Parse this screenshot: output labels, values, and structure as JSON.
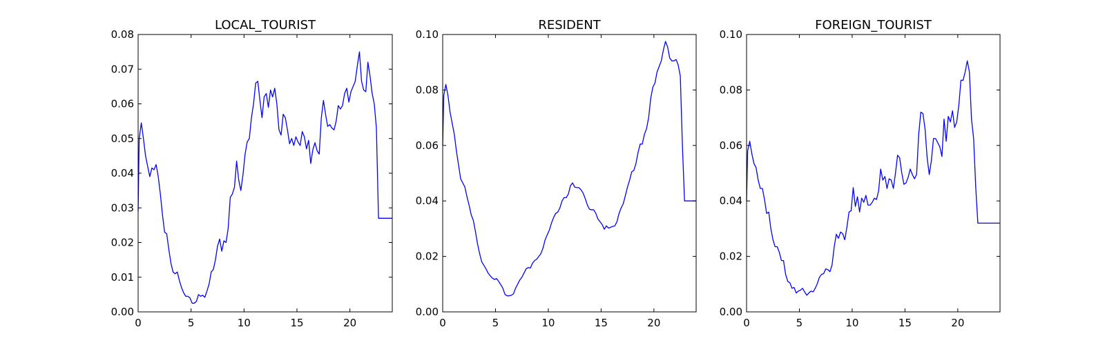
{
  "chart_data": [
    {
      "type": "line",
      "title": "LOCAL_TOURIST",
      "xlabel": "",
      "ylabel": "",
      "xlim": [
        0,
        24
      ],
      "ylim": [
        0,
        0.08
      ],
      "xticks": [
        0,
        5,
        10,
        15,
        20
      ],
      "yticks": [
        0.0,
        0.01,
        0.02,
        0.03,
        0.04,
        0.05,
        0.06,
        0.07,
        0.08
      ],
      "xtick_labels": [
        "0",
        "5",
        "10",
        "15",
        "20"
      ],
      "ytick_labels": [
        "0.00",
        "0.01",
        "0.02",
        "0.03",
        "0.04",
        "0.05",
        "0.06",
        "0.07",
        "0.08"
      ],
      "grid": false,
      "color": "#0000ff",
      "series": [
        {
          "x": [
            0,
            0.1,
            0.3,
            0.5,
            0.7,
            0.9,
            1.1,
            1.3,
            1.5,
            1.7,
            1.9,
            2.1,
            2.3,
            2.5,
            2.7,
            2.9,
            3.1,
            3.3,
            3.5,
            3.7,
            3.9,
            4.1,
            4.3,
            4.5,
            4.7,
            4.9,
            5.1,
            5.3,
            5.5,
            5.7,
            5.9,
            6.1,
            6.3,
            6.5,
            6.7,
            6.9,
            7.1,
            7.3,
            7.5,
            7.7,
            7.9,
            8.1,
            8.3,
            8.5,
            8.7,
            8.9,
            9.1,
            9.3,
            9.5,
            9.7,
            9.9,
            10.1,
            10.3,
            10.5,
            10.7,
            10.9,
            11.1,
            11.3,
            11.5,
            11.7,
            11.9,
            12.1,
            12.3,
            12.5,
            12.7,
            12.9,
            13.1,
            13.3,
            13.5,
            13.7,
            13.9,
            14.1,
            14.3,
            14.5,
            14.7,
            14.9,
            15.1,
            15.3,
            15.5,
            15.7,
            15.9,
            16.1,
            16.3,
            16.5,
            16.7,
            16.9,
            17.1,
            17.3,
            17.5,
            17.7,
            17.9,
            18.1,
            18.3,
            18.5,
            18.7,
            18.9,
            19.1,
            19.3,
            19.5,
            19.7,
            19.9,
            20.1,
            20.3,
            20.5,
            20.7,
            20.9,
            21.1,
            21.3,
            21.5,
            21.7,
            21.9,
            22.1,
            22.3,
            22.5,
            22.7,
            22.9,
            23.1,
            23.3,
            23.5,
            23.7,
            23.9,
            24
          ],
          "y": [
            0.029,
            0.05,
            0.0545,
            0.05,
            0.045,
            0.042,
            0.039,
            0.0415,
            0.041,
            0.0425,
            0.039,
            0.034,
            0.028,
            0.023,
            0.0225,
            0.018,
            0.014,
            0.0115,
            0.011,
            0.0115,
            0.009,
            0.007,
            0.0055,
            0.0045,
            0.0045,
            0.004,
            0.0025,
            0.0025,
            0.003,
            0.005,
            0.0045,
            0.0048,
            0.0042,
            0.006,
            0.008,
            0.0115,
            0.0122,
            0.015,
            0.019,
            0.021,
            0.0175,
            0.0205,
            0.02,
            0.024,
            0.033,
            0.034,
            0.036,
            0.0435,
            0.038,
            0.035,
            0.0395,
            0.0455,
            0.049,
            0.05,
            0.056,
            0.06,
            0.066,
            0.0665,
            0.061,
            0.056,
            0.062,
            0.063,
            0.059,
            0.064,
            0.062,
            0.0645,
            0.06,
            0.0525,
            0.051,
            0.057,
            0.056,
            0.0525,
            0.0485,
            0.05,
            0.048,
            0.0505,
            0.049,
            0.048,
            0.052,
            0.0505,
            0.047,
            0.0495,
            0.0428,
            0.0468,
            0.0488,
            0.0465,
            0.0455,
            0.056,
            0.061,
            0.057,
            0.0535,
            0.054,
            0.053,
            0.0525,
            0.055,
            0.0595,
            0.0585,
            0.0595,
            0.063,
            0.0645,
            0.0605,
            0.0635,
            0.065,
            0.0665,
            0.071,
            0.075,
            0.0665,
            0.064,
            0.0635,
            0.072,
            0.068,
            0.063,
            0.06,
            0.053,
            0.027,
            0.027,
            0.027,
            0.027,
            0.027,
            0.027,
            0.027,
            0.027
          ]
        }
      ]
    },
    {
      "type": "line",
      "title": "RESIDENT",
      "xlabel": "",
      "ylabel": "",
      "xlim": [
        0,
        24
      ],
      "ylim": [
        0,
        0.1
      ],
      "xticks": [
        0,
        5,
        10,
        15,
        20
      ],
      "yticks": [
        0.0,
        0.02,
        0.04,
        0.06,
        0.08,
        0.1
      ],
      "xtick_labels": [
        "0",
        "5",
        "10",
        "15",
        "20"
      ],
      "ytick_labels": [
        "0.00",
        "0.02",
        "0.04",
        "0.06",
        "0.08",
        "0.10"
      ],
      "grid": false,
      "color": "#0000ff",
      "series": [
        {
          "x": [
            0,
            0.1,
            0.3,
            0.5,
            0.7,
            0.9,
            1.1,
            1.3,
            1.5,
            1.7,
            1.9,
            2.1,
            2.3,
            2.5,
            2.7,
            2.9,
            3.1,
            3.3,
            3.5,
            3.7,
            3.9,
            4.1,
            4.3,
            4.5,
            4.7,
            4.9,
            5.1,
            5.3,
            5.5,
            5.7,
            5.9,
            6.1,
            6.3,
            6.5,
            6.7,
            6.9,
            7.1,
            7.3,
            7.5,
            7.7,
            7.9,
            8.1,
            8.3,
            8.5,
            8.7,
            8.9,
            9.1,
            9.3,
            9.5,
            9.7,
            9.9,
            10.1,
            10.3,
            10.5,
            10.7,
            10.9,
            11.1,
            11.3,
            11.5,
            11.7,
            11.9,
            12.1,
            12.3,
            12.5,
            12.7,
            12.9,
            13.1,
            13.3,
            13.5,
            13.7,
            13.9,
            14.1,
            14.3,
            14.5,
            14.7,
            14.9,
            15.1,
            15.3,
            15.5,
            15.7,
            15.9,
            16.1,
            16.3,
            16.5,
            16.7,
            16.9,
            17.1,
            17.3,
            17.5,
            17.7,
            17.9,
            18.1,
            18.3,
            18.5,
            18.7,
            18.9,
            19.1,
            19.3,
            19.5,
            19.7,
            19.9,
            20.1,
            20.3,
            20.5,
            20.7,
            20.9,
            21.1,
            21.3,
            21.5,
            21.7,
            21.9,
            22.1,
            22.3,
            22.5,
            22.7,
            22.9,
            23.1,
            23.3,
            23.5,
            23.7,
            23.9,
            24
          ],
          "y": [
            0.06,
            0.078,
            0.082,
            0.078,
            0.072,
            0.068,
            0.064,
            0.058,
            0.053,
            0.048,
            0.0465,
            0.045,
            0.0415,
            0.0385,
            0.035,
            0.033,
            0.029,
            0.0245,
            0.021,
            0.018,
            0.0168,
            0.0155,
            0.014,
            0.013,
            0.0122,
            0.0117,
            0.012,
            0.011,
            0.0098,
            0.0085,
            0.0063,
            0.0058,
            0.0058,
            0.006,
            0.0065,
            0.0085,
            0.01,
            0.0115,
            0.0125,
            0.014,
            0.0155,
            0.016,
            0.0158,
            0.0175,
            0.0185,
            0.019,
            0.02,
            0.021,
            0.023,
            0.026,
            0.0278,
            0.0295,
            0.032,
            0.034,
            0.0355,
            0.036,
            0.0375,
            0.04,
            0.0412,
            0.0412,
            0.0425,
            0.0455,
            0.0465,
            0.045,
            0.0448,
            0.0448,
            0.044,
            0.0428,
            0.0408,
            0.0385,
            0.037,
            0.0368,
            0.0368,
            0.0355,
            0.0335,
            0.0325,
            0.0315,
            0.0298,
            0.031,
            0.0302,
            0.0305,
            0.0308,
            0.031,
            0.0325,
            0.0355,
            0.0375,
            0.039,
            0.042,
            0.045,
            0.0475,
            0.0505,
            0.051,
            0.0535,
            0.0575,
            0.0605,
            0.0605,
            0.064,
            0.066,
            0.07,
            0.077,
            0.081,
            0.0825,
            0.0865,
            0.0885,
            0.0905,
            0.0945,
            0.0975,
            0.0955,
            0.0915,
            0.0905,
            0.0905,
            0.091,
            0.089,
            0.085,
            0.06,
            0.04,
            0.04,
            0.04,
            0.04,
            0.04,
            0.04,
            0.04
          ]
        }
      ]
    },
    {
      "type": "line",
      "title": "FOREIGN_TOURIST",
      "xlabel": "",
      "ylabel": "",
      "xlim": [
        0,
        24
      ],
      "ylim": [
        0,
        0.1
      ],
      "xticks": [
        0,
        5,
        10,
        15,
        20
      ],
      "yticks": [
        0.0,
        0.02,
        0.04,
        0.06,
        0.08,
        0.1
      ],
      "xtick_labels": [
        "0",
        "5",
        "10",
        "15",
        "20"
      ],
      "ytick_labels": [
        "0.00",
        "0.02",
        "0.04",
        "0.06",
        "0.08",
        "0.10"
      ],
      "grid": false,
      "color": "#0000ff",
      "series": [
        {
          "x": [
            0,
            0.1,
            0.3,
            0.5,
            0.7,
            0.9,
            1.1,
            1.3,
            1.5,
            1.7,
            1.9,
            2.1,
            2.3,
            2.5,
            2.7,
            2.9,
            3.1,
            3.3,
            3.5,
            3.7,
            3.9,
            4.1,
            4.3,
            4.5,
            4.7,
            4.9,
            5.1,
            5.3,
            5.5,
            5.7,
            5.9,
            6.1,
            6.3,
            6.5,
            6.7,
            6.9,
            7.1,
            7.3,
            7.5,
            7.7,
            7.9,
            8.1,
            8.3,
            8.5,
            8.7,
            8.9,
            9.1,
            9.3,
            9.5,
            9.7,
            9.9,
            10.1,
            10.3,
            10.5,
            10.7,
            10.9,
            11.1,
            11.3,
            11.5,
            11.7,
            11.9,
            12.1,
            12.3,
            12.5,
            12.7,
            12.9,
            13.1,
            13.3,
            13.5,
            13.7,
            13.9,
            14.1,
            14.3,
            14.5,
            14.7,
            14.9,
            15.1,
            15.3,
            15.5,
            15.7,
            15.9,
            16.1,
            16.3,
            16.5,
            16.7,
            16.9,
            17.1,
            17.3,
            17.5,
            17.7,
            17.9,
            18.1,
            18.3,
            18.5,
            18.7,
            18.9,
            19.1,
            19.3,
            19.5,
            19.7,
            19.9,
            20.1,
            20.3,
            20.5,
            20.7,
            20.9,
            21.1,
            21.3,
            21.5,
            21.7,
            21.9,
            22.1,
            22.3,
            22.5,
            22.7,
            22.9,
            23.1,
            23.3,
            23.5,
            23.7,
            23.9,
            24
          ],
          "y": [
            0.04,
            0.058,
            0.0615,
            0.057,
            0.0535,
            0.052,
            0.0475,
            0.0445,
            0.0445,
            0.0405,
            0.0355,
            0.036,
            0.03,
            0.026,
            0.0235,
            0.0235,
            0.0215,
            0.0185,
            0.0185,
            0.0135,
            0.011,
            0.0105,
            0.0085,
            0.0088,
            0.0068,
            0.0075,
            0.0078,
            0.0085,
            0.0072,
            0.006,
            0.0068,
            0.0075,
            0.0072,
            0.0085,
            0.0102,
            0.0125,
            0.0135,
            0.0138,
            0.0155,
            0.0152,
            0.0145,
            0.017,
            0.0235,
            0.028,
            0.0265,
            0.0288,
            0.0282,
            0.026,
            0.0305,
            0.036,
            0.0365,
            0.0448,
            0.038,
            0.0415,
            0.036,
            0.041,
            0.0395,
            0.042,
            0.0385,
            0.0385,
            0.0395,
            0.041,
            0.0405,
            0.0435,
            0.0515,
            0.0475,
            0.0488,
            0.0445,
            0.048,
            0.0475,
            0.0445,
            0.05,
            0.0565,
            0.0555,
            0.05,
            0.046,
            0.0465,
            0.0485,
            0.0515,
            0.0495,
            0.048,
            0.0495,
            0.064,
            0.072,
            0.0715,
            0.066,
            0.0555,
            0.0495,
            0.0545,
            0.0625,
            0.0625,
            0.061,
            0.0595,
            0.056,
            0.0695,
            0.0615,
            0.0705,
            0.0685,
            0.0725,
            0.0665,
            0.0685,
            0.0745,
            0.0835,
            0.0835,
            0.0865,
            0.0905,
            0.0865,
            0.0695,
            0.0625,
            0.045,
            0.032,
            0.032,
            0.032,
            0.032,
            0.032,
            0.032,
            0.032,
            0.032,
            0.032,
            0.032,
            0.032,
            0.032
          ]
        }
      ]
    }
  ]
}
